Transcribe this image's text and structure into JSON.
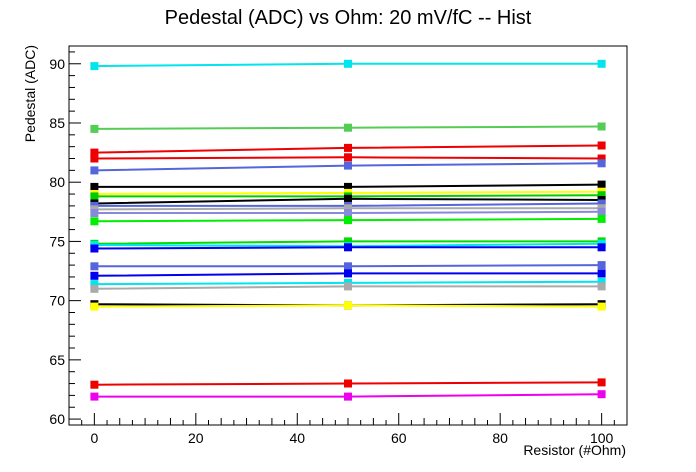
{
  "chart_data": {
    "type": "line",
    "title": "Pedestal (ADC) vs Ohm: 20 mV/fC -- Hist",
    "xlabel": "Resistor (#Ohm)",
    "ylabel": "Pedestal (ADC)",
    "xlim": [
      -5,
      105
    ],
    "ylim": [
      59.5,
      91.5
    ],
    "x_ticks": [
      0,
      20,
      40,
      60,
      80,
      100
    ],
    "y_ticks": [
      60,
      65,
      70,
      75,
      80,
      85,
      90
    ],
    "grid": false,
    "legend": "none",
    "x": [
      0,
      50,
      100
    ],
    "series": [
      {
        "color": "#00e5ee",
        "values": [
          89.8,
          90.0,
          90.0
        ]
      },
      {
        "color": "#55cc55",
        "values": [
          84.5,
          84.6,
          84.7
        ]
      },
      {
        "color": "#ee0000",
        "values": [
          82.5,
          82.9,
          83.1
        ]
      },
      {
        "color": "#ee0000",
        "values": [
          82.0,
          82.1,
          82.0
        ]
      },
      {
        "color": "#5566dd",
        "values": [
          81.0,
          81.4,
          81.6
        ]
      },
      {
        "color": "#000000",
        "values": [
          79.6,
          79.6,
          79.8
        ]
      },
      {
        "color": "#ffff00",
        "values": [
          79.0,
          79.1,
          79.2
        ]
      },
      {
        "color": "#00cc00",
        "values": [
          78.8,
          78.8,
          78.9
        ]
      },
      {
        "color": "#000000",
        "values": [
          78.2,
          78.6,
          78.5
        ]
      },
      {
        "color": "#5566dd",
        "values": [
          78.0,
          78.0,
          78.2
        ]
      },
      {
        "color": "#aaaaaa",
        "values": [
          77.7,
          77.8,
          77.8
        ]
      },
      {
        "color": "#8888dd",
        "values": [
          77.4,
          77.4,
          77.5
        ]
      },
      {
        "color": "#00ee00",
        "values": [
          76.7,
          76.8,
          76.9
        ]
      },
      {
        "color": "#00dd00",
        "values": [
          74.8,
          75.0,
          75.0
        ]
      },
      {
        "color": "#00e5ee",
        "values": [
          74.7,
          74.6,
          74.8
        ]
      },
      {
        "color": "#0000ee",
        "values": [
          74.4,
          74.5,
          74.5
        ]
      },
      {
        "color": "#5566dd",
        "values": [
          72.9,
          72.9,
          73.0
        ]
      },
      {
        "color": "#0000ee",
        "values": [
          72.1,
          72.3,
          72.3
        ]
      },
      {
        "color": "#00e5ee",
        "values": [
          71.4,
          71.5,
          71.6
        ]
      },
      {
        "color": "#aaaaaa",
        "values": [
          71.0,
          71.2,
          71.2
        ]
      },
      {
        "color": "#000000",
        "values": [
          69.7,
          69.6,
          69.7
        ]
      },
      {
        "color": "#ffff00",
        "values": [
          69.5,
          69.6,
          69.5
        ]
      },
      {
        "color": "#ee0000",
        "values": [
          62.9,
          63.0,
          63.1
        ]
      },
      {
        "color": "#ee00ee",
        "values": [
          61.9,
          61.9,
          62.1
        ]
      }
    ]
  }
}
